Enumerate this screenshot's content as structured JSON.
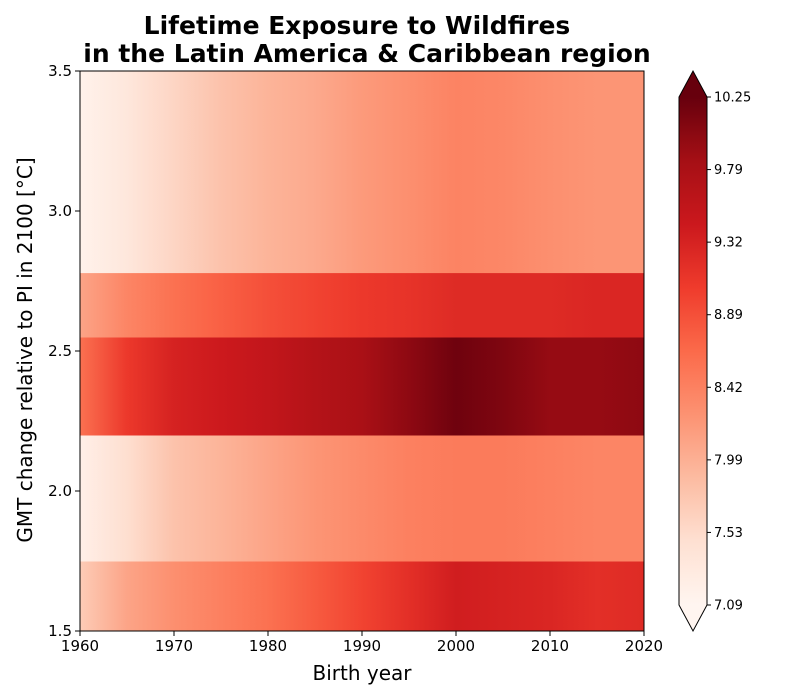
{
  "chart_data": {
    "type": "heatmap",
    "title_lines": [
      "Lifetime Exposure to Wildfires",
      "in the Latin America & Caribbean region"
    ],
    "xlabel": "Birth year",
    "ylabel": "GMT change relative to PI in 2100 [°C]",
    "xlim": [
      1960,
      2020
    ],
    "ylim": [
      1.5,
      3.5
    ],
    "x_ticks": [
      1960,
      1970,
      1980,
      1990,
      2000,
      2010,
      2020
    ],
    "y_ticks": [
      "1.5",
      "2.0",
      "2.5",
      "3.0",
      "3.5"
    ],
    "colormap": "Reds",
    "colorbar": {
      "min": 7.09,
      "max": 10.25,
      "extend": "both",
      "ticks": [
        "7.09",
        "7.53",
        "7.99",
        "8.42",
        "8.89",
        "9.32",
        "9.79",
        "10.25"
      ]
    },
    "grid_x": [
      1960,
      1965,
      1970,
      1975,
      1980,
      1985,
      1990,
      1995,
      2000,
      2005,
      2010,
      2015,
      2020
    ],
    "bands": [
      {
        "y_range": [
          1.5,
          1.75
        ],
        "values": [
          7.7,
          8.1,
          8.3,
          8.45,
          8.6,
          8.8,
          9.0,
          9.2,
          9.4,
          9.35,
          9.3,
          9.2,
          9.25
        ]
      },
      {
        "y_range": [
          1.75,
          2.2
        ],
        "values": [
          7.2,
          7.5,
          7.8,
          7.95,
          8.1,
          8.25,
          8.35,
          8.45,
          8.5,
          8.5,
          8.45,
          8.4,
          8.4
        ]
      },
      {
        "y_range": [
          2.2,
          2.55
        ],
        "values": [
          8.6,
          9.1,
          9.35,
          9.45,
          9.55,
          9.7,
          9.8,
          10.0,
          10.2,
          10.1,
          9.95,
          9.95,
          10.0
        ]
      },
      {
        "y_range": [
          2.55,
          2.78
        ],
        "values": [
          8.1,
          8.4,
          8.6,
          8.75,
          8.9,
          9.0,
          9.1,
          9.15,
          9.25,
          9.25,
          9.25,
          9.3,
          9.3
        ]
      },
      {
        "y_range": [
          2.78,
          3.5
        ],
        "values": [
          7.15,
          7.35,
          7.6,
          7.8,
          7.95,
          8.05,
          8.2,
          8.3,
          8.42,
          8.38,
          8.3,
          8.25,
          8.25
        ]
      }
    ]
  }
}
